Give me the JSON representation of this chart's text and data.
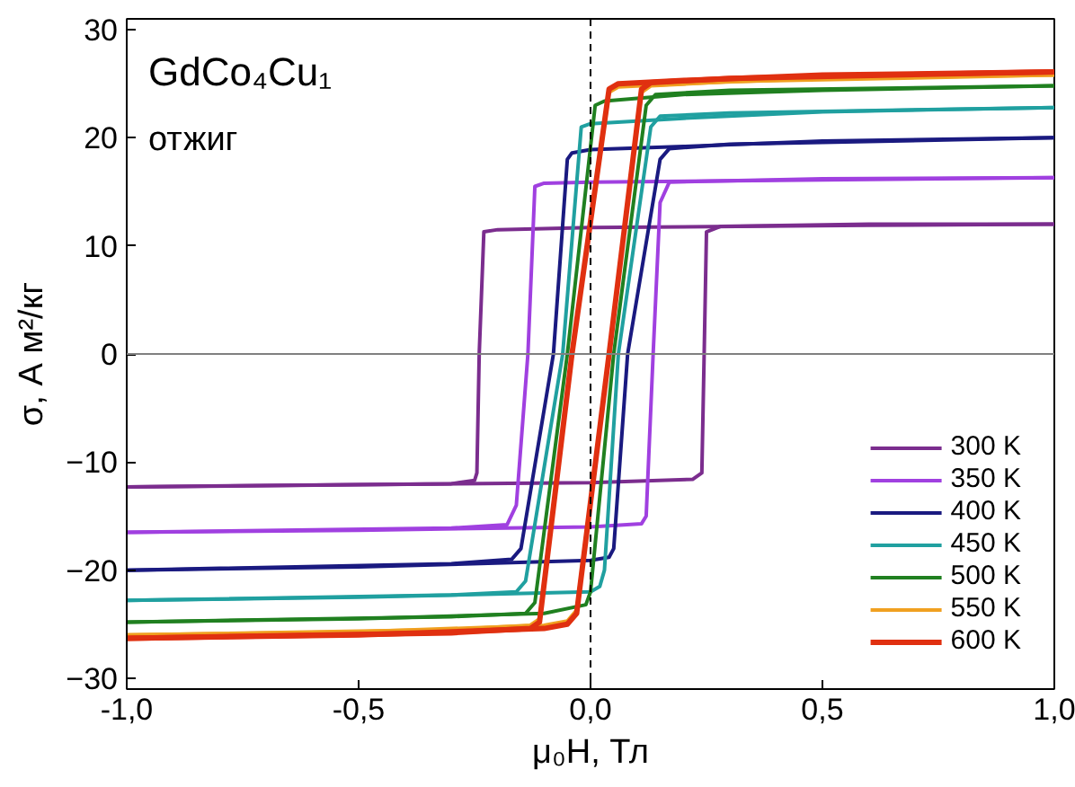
{
  "chart_data": {
    "type": "line",
    "xlabel": "μ₀H, Тл",
    "ylabel": "σ, А м²/кг",
    "annotations": [
      "GdCo₄Cu₁",
      "отжиг"
    ],
    "xlim": [
      -1,
      1
    ],
    "ylim": [
      -31,
      31
    ],
    "xticks": [
      {
        "value": -1,
        "label": "-1,0"
      },
      {
        "value": -0.5,
        "label": "-0,5"
      },
      {
        "value": 0,
        "label": "0,0"
      },
      {
        "value": 0.5,
        "label": "0,5"
      },
      {
        "value": 1,
        "label": "1,0"
      }
    ],
    "yticks": [
      -30,
      -20,
      -10,
      0,
      10,
      20,
      30
    ],
    "grid": false,
    "legend": "bottom right",
    "marker": "none",
    "line_style": "solid",
    "ref_lines": [
      {
        "axis": "y",
        "value": 0,
        "color": "#808080",
        "line_style": "solid"
      },
      {
        "axis": "x",
        "value": 0,
        "color": "#000000",
        "line_style": "dashed"
      }
    ],
    "series": [
      {
        "name": "300 K",
        "color": "#7b2d8e",
        "x": [
          -1,
          -0.3,
          -0.25,
          -0.245,
          -0.24,
          -0.23,
          -0.2,
          0,
          0.6,
          1
        ],
        "values": [
          -12.3,
          -12,
          -11.7,
          -11,
          0,
          11.3,
          11.5,
          11.7,
          11.9,
          12
        ]
      },
      {
        "color": "#7b2d8e",
        "x": [
          -1,
          -0.5,
          0,
          0.22,
          0.24,
          0.245,
          0.25,
          0.28,
          0.6,
          1
        ],
        "values": [
          -12.3,
          -12.1,
          -11.9,
          -11.6,
          -11,
          0,
          11.3,
          11.8,
          12,
          12
        ]
      },
      {
        "name": "350 K",
        "color": "#a040e0",
        "x": [
          -1,
          -0.3,
          -0.18,
          -0.16,
          -0.135,
          -0.12,
          -0.1,
          0,
          0.5,
          1
        ],
        "values": [
          -16.5,
          -16.1,
          -15.8,
          -14,
          0,
          15.5,
          15.8,
          15.9,
          16.1,
          16.3
        ]
      },
      {
        "color": "#a040e0",
        "x": [
          -1,
          -0.5,
          0,
          0.11,
          0.12,
          0.135,
          0.15,
          0.17,
          0.5,
          1
        ],
        "values": [
          -16.5,
          -16.3,
          -16,
          -15.7,
          -15,
          0,
          14,
          15.9,
          16.2,
          16.3
        ]
      },
      {
        "name": "400 K",
        "color": "#1a1a80",
        "x": [
          -1,
          -0.3,
          -0.17,
          -0.15,
          -0.08,
          -0.05,
          -0.04,
          0,
          0.2,
          0.5,
          1
        ],
        "values": [
          -20,
          -19.4,
          -19,
          -18,
          0,
          18,
          18.6,
          18.9,
          19.2,
          19.7,
          20
        ]
      },
      {
        "color": "#1a1a80",
        "x": [
          -1,
          -0.5,
          0,
          0.04,
          0.05,
          0.08,
          0.15,
          0.17,
          0.3,
          1
        ],
        "values": [
          -20,
          -19.7,
          -19.1,
          -18.8,
          -18,
          0,
          18,
          19,
          19.4,
          20
        ]
      },
      {
        "name": "450 K",
        "color": "#20a0a0",
        "x": [
          -1,
          -0.3,
          -0.16,
          -0.14,
          -0.06,
          -0.02,
          0,
          0.2,
          0.5,
          1
        ],
        "values": [
          -22.8,
          -22.3,
          -22,
          -21,
          0,
          21,
          21.3,
          21.8,
          22.4,
          22.8
        ]
      },
      {
        "color": "#20a0a0",
        "x": [
          -1,
          -0.5,
          0,
          0.02,
          0.03,
          0.06,
          0.13,
          0.15,
          0.3,
          1
        ],
        "values": [
          -22.8,
          -22.5,
          -22,
          -21.5,
          -20,
          0,
          21,
          22,
          22.3,
          22.8
        ]
      },
      {
        "name": "500 K",
        "color": "#208020",
        "x": [
          -1,
          -0.3,
          -0.14,
          -0.12,
          -0.05,
          0.01,
          0.03,
          0.2,
          0.5,
          1
        ],
        "values": [
          -24.8,
          -24.3,
          -24,
          -23,
          0,
          23,
          23.4,
          24,
          24.4,
          24.8
        ]
      },
      {
        "color": "#208020",
        "x": [
          -1,
          -0.5,
          -0.1,
          -0.01,
          0,
          0.05,
          0.12,
          0.14,
          0.3,
          1
        ],
        "values": [
          -24.8,
          -24.5,
          -24,
          -23.2,
          -22,
          0,
          23,
          24,
          24.4,
          24.8
        ]
      },
      {
        "name": "550 K",
        "color": "#f0a020",
        "x": [
          -1,
          -0.3,
          -0.13,
          -0.11,
          -0.04,
          0.04,
          0.06,
          0.2,
          0.5,
          1
        ],
        "values": [
          -26,
          -25.5,
          -25.1,
          -24.5,
          0,
          24.2,
          24.7,
          25,
          25.5,
          25.8
        ]
      },
      {
        "color": "#f0a020",
        "x": [
          -1,
          -0.5,
          -0.1,
          -0.05,
          -0.03,
          0.04,
          0.11,
          0.13,
          0.3,
          1
        ],
        "values": [
          -26,
          -25.7,
          -25.1,
          -24.7,
          -23.7,
          0,
          24.2,
          24.8,
          25.2,
          25.8
        ]
      },
      {
        "name": "600 K",
        "color": "#e03010",
        "x": [
          -1,
          -0.3,
          -0.13,
          -0.11,
          -0.04,
          0.04,
          0.06,
          0.2,
          0.5,
          1
        ],
        "values": [
          -26.3,
          -25.8,
          -25.4,
          -24.8,
          0,
          24.5,
          25,
          25.3,
          25.8,
          26.1
        ]
      },
      {
        "color": "#e03010",
        "x": [
          -1,
          -0.5,
          -0.1,
          -0.05,
          -0.03,
          0.04,
          0.11,
          0.13,
          0.3,
          1
        ],
        "values": [
          -26.3,
          -26,
          -25.4,
          -25,
          -24,
          0,
          24.5,
          25.1,
          25.5,
          26.1
        ]
      }
    ]
  }
}
